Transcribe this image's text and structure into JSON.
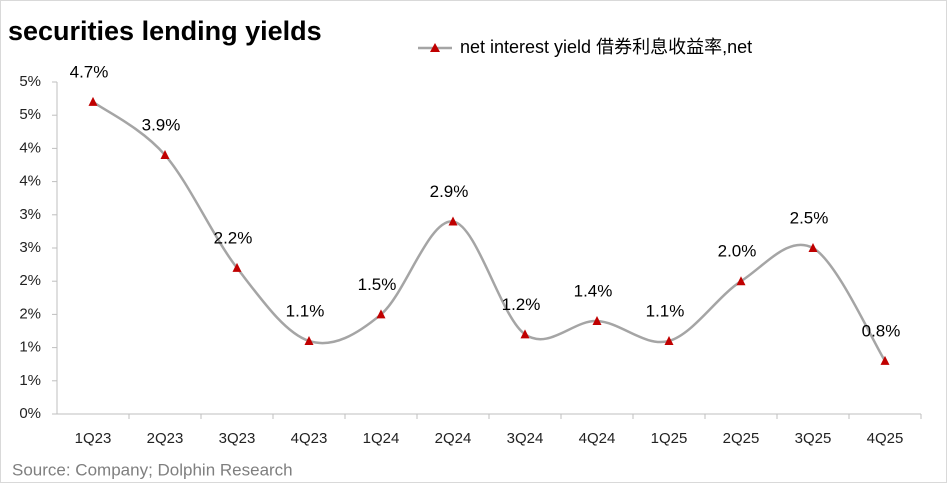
{
  "chart_data": {
    "type": "line",
    "title": "securities lending yields",
    "source": "Source: Company; Dolphin Research",
    "categories": [
      "1Q23",
      "2Q23",
      "3Q23",
      "4Q23",
      "1Q24",
      "2Q24",
      "3Q24",
      "4Q24",
      "1Q25",
      "2Q25",
      "3Q25",
      "4Q25"
    ],
    "series": [
      {
        "name": "net interest yield 借券利息收益率,net",
        "color": "#a5a5a5",
        "marker_color": "#c00000",
        "values": [
          4.7,
          3.9,
          2.2,
          1.1,
          1.5,
          2.9,
          1.2,
          1.4,
          1.1,
          2.0,
          2.5,
          0.8
        ],
        "value_labels": [
          "4.7%",
          "3.9%",
          "2.2%",
          "1.1%",
          "1.5%",
          "2.9%",
          "1.2%",
          "1.4%",
          "1.1%",
          "2.0%",
          "2.5%",
          "0.8%"
        ]
      }
    ],
    "ylim": [
      0,
      5
    ],
    "yticks": [
      {
        "value": 0,
        "label": "0%"
      },
      {
        "value": 0.5,
        "label": "1%"
      },
      {
        "value": 1,
        "label": "1%"
      },
      {
        "value": 1.5,
        "label": "2%"
      },
      {
        "value": 2,
        "label": "2%"
      },
      {
        "value": 2.5,
        "label": "3%"
      },
      {
        "value": 3,
        "label": "3%"
      },
      {
        "value": 3.5,
        "label": "4%"
      },
      {
        "value": 4,
        "label": "4%"
      },
      {
        "value": 4.5,
        "label": "5%"
      },
      {
        "value": 5,
        "label": "5%"
      }
    ],
    "grid": false,
    "smooth": true,
    "legend": "top"
  }
}
